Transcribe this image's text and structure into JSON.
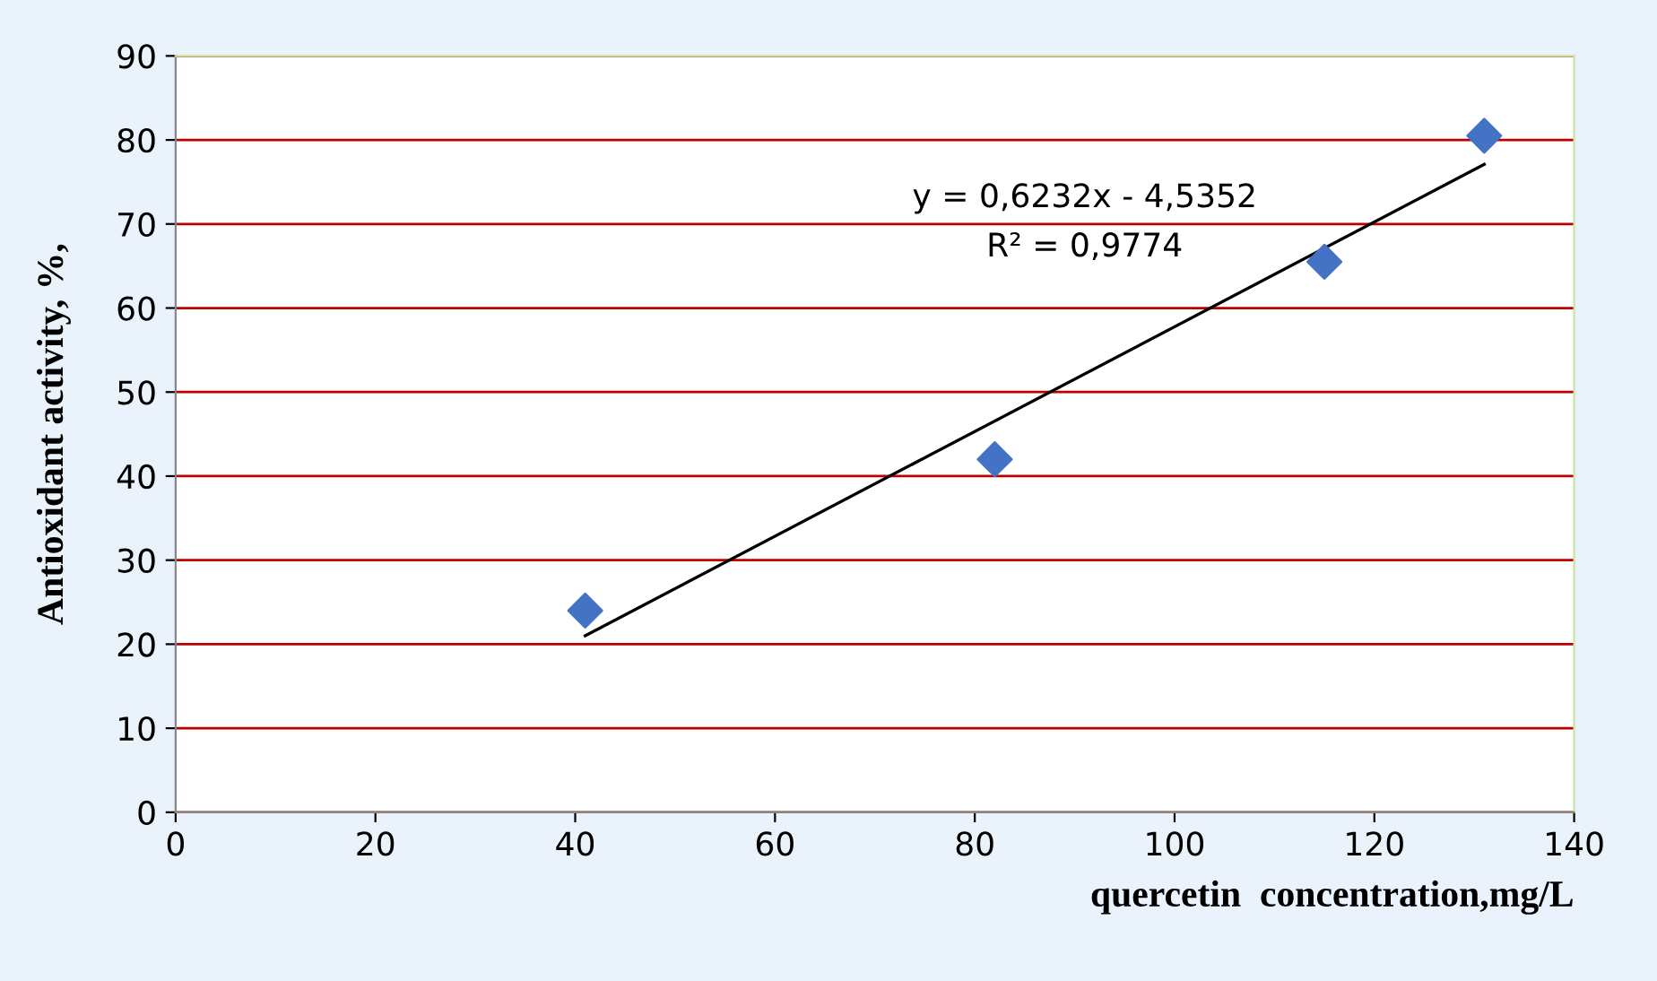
{
  "chart_data": {
    "type": "scatter",
    "xlabel": "quercetin  concentration,mg/L",
    "ylabel": "Antioxidant activity, %,",
    "series": [
      {
        "color": "#4472c4",
        "marker": "diamond",
        "x": [
          41,
          82,
          115,
          131
        ],
        "values": [
          24,
          42,
          65.5,
          80.5
        ]
      },
      {
        "type": "line",
        "color": "#000000",
        "marker": "none",
        "x": [
          41,
          131
        ],
        "values": [
          21,
          77.1
        ]
      }
    ],
    "annotations": [
      "y = 0,6232x - 4,5352",
      "R² = 0,9774"
    ],
    "xlim": [
      0,
      140
    ],
    "xticks": [
      0,
      20,
      40,
      60,
      80,
      100,
      120,
      140
    ],
    "ylim": [
      0,
      90
    ],
    "yticks": [
      0,
      10,
      20,
      30,
      40,
      50,
      60,
      70,
      80,
      90
    ],
    "grid": "y",
    "legend": false
  }
}
